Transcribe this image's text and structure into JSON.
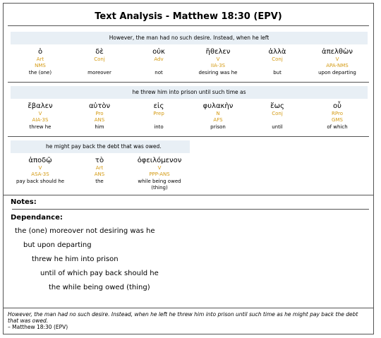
{
  "title": "Text Analysis - Matthew 18:30 (EPV)",
  "blocks": [
    {
      "gloss": "However, the man had no such desire. Instead, when he left",
      "words": [
        {
          "greek": "ὁ",
          "pos": "Art",
          "parse": "NMS",
          "eng": "the (one)"
        },
        {
          "greek": "δὲ",
          "pos": "Conj",
          "parse": "",
          "eng": "moreover"
        },
        {
          "greek": "οὐκ",
          "pos": "Adv",
          "parse": "",
          "eng": "not"
        },
        {
          "greek": "ἤθελεν",
          "pos": "V",
          "parse": "IIA-3S",
          "eng": "desiring was he"
        },
        {
          "greek": "ἀλλὰ",
          "pos": "Conj",
          "parse": "",
          "eng": "but"
        },
        {
          "greek": "ἀπελθὼν",
          "pos": "V",
          "parse": "APA-NMS",
          "eng": "upon departing"
        }
      ]
    },
    {
      "gloss": "he threw him into prison until such time as",
      "words": [
        {
          "greek": "ἔβαλεν",
          "pos": "V",
          "parse": "AIA-3S",
          "eng": "threw he"
        },
        {
          "greek": "αὐτὸν",
          "pos": "Pro",
          "parse": "ANS",
          "eng": "him"
        },
        {
          "greek": "εἰς",
          "pos": "Prep",
          "parse": "",
          "eng": "into"
        },
        {
          "greek": "φυλακὴν",
          "pos": "N",
          "parse": "AFS",
          "eng": "prison"
        },
        {
          "greek": "ἕως",
          "pos": "Conj",
          "parse": "",
          "eng": "until"
        },
        {
          "greek": "οὗ",
          "pos": "RPro",
          "parse": "GMS",
          "eng": "of which"
        }
      ]
    },
    {
      "gloss": "he might pay back the debt that was owed.",
      "words": [
        {
          "greek": "ἀποδῷ",
          "pos": "V",
          "parse": "ASA-3S",
          "eng": "pay back should he"
        },
        {
          "greek": "τὸ",
          "pos": "Art",
          "parse": "ANS",
          "eng": "the"
        },
        {
          "greek": "ὀφειλόμενον",
          "pos": "V",
          "parse": "PPP-ANS",
          "eng": "while being owed (thing)"
        }
      ]
    }
  ],
  "notes_label": "Notes:",
  "dependance_label": "Dependance:",
  "dependance": [
    "the (one) moreover not desiring was he",
    "but upon departing",
    "threw he him into prison",
    "until of which pay back should he",
    "the while being owed (thing)"
  ],
  "footer_text": "However, the man had no such desire. Instead, when he left he threw him into prison until such time as he might pay back the debt that was owed.",
  "footer_ref": "– Matthew 18:30 (EPV)"
}
